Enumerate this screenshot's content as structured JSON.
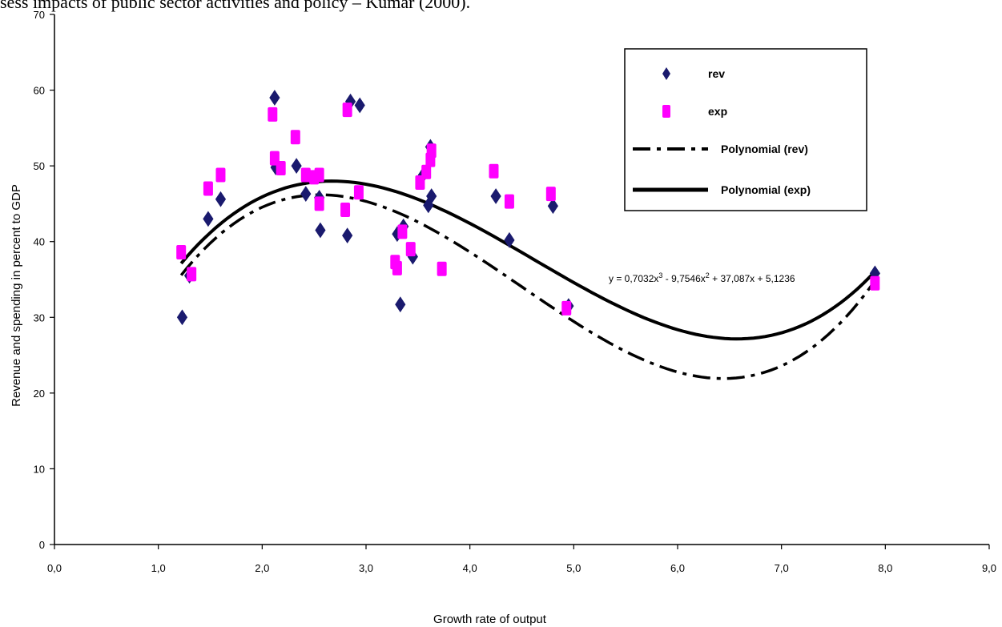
{
  "document": {
    "header_text": "sess impacts of public sector activities and policy – Kumar (2000)."
  },
  "chart_data": {
    "type": "scatter",
    "xlabel": "Growth rate of output",
    "ylabel": "Revenue and spending in percent to GDP",
    "xlim": [
      0,
      9
    ],
    "ylim": [
      0,
      70
    ],
    "x_ticks": [
      "0,0",
      "1,0",
      "2,0",
      "3,0",
      "4,0",
      "5,0",
      "6,0",
      "7,0",
      "8,0",
      "9,0"
    ],
    "y_ticks": [
      "0",
      "10",
      "20",
      "30",
      "40",
      "50",
      "60",
      "70"
    ],
    "grid": false,
    "legend_position": "top-right",
    "legend": [
      "rev",
      "exp",
      "Polynomial (rev)",
      "Polynomial (exp)"
    ],
    "annotation": "y = 0,7032x3 - 9,7546x2 + 37,087x + 5,1236",
    "colors": {
      "rev": "#1a1a6e",
      "exp": "#ff00ff",
      "trend": "#000000"
    },
    "series": [
      {
        "name": "rev",
        "marker": "diamond",
        "points": [
          [
            1.23,
            30.0
          ],
          [
            1.3,
            35.5
          ],
          [
            1.48,
            43.0
          ],
          [
            1.6,
            45.6
          ],
          [
            2.12,
            59.0
          ],
          [
            2.13,
            49.8
          ],
          [
            2.33,
            50.0
          ],
          [
            2.42,
            46.3
          ],
          [
            2.55,
            45.8
          ],
          [
            2.56,
            41.5
          ],
          [
            2.82,
            40.8
          ],
          [
            2.85,
            58.5
          ],
          [
            2.94,
            58.0
          ],
          [
            3.3,
            41.0
          ],
          [
            3.33,
            31.7
          ],
          [
            3.36,
            42.0
          ],
          [
            3.45,
            38.0
          ],
          [
            3.55,
            48.8
          ],
          [
            3.6,
            44.8
          ],
          [
            3.62,
            52.5
          ],
          [
            3.63,
            46.0
          ],
          [
            4.25,
            46.0
          ],
          [
            4.38,
            40.2
          ],
          [
            4.8,
            44.7
          ],
          [
            4.95,
            31.5
          ],
          [
            7.9,
            35.8
          ]
        ]
      },
      {
        "name": "exp",
        "marker": "square",
        "points": [
          [
            1.22,
            38.6
          ],
          [
            1.32,
            35.7
          ],
          [
            1.48,
            47.0
          ],
          [
            1.6,
            48.8
          ],
          [
            2.1,
            56.8
          ],
          [
            2.12,
            51.0
          ],
          [
            2.18,
            49.7
          ],
          [
            2.32,
            53.8
          ],
          [
            2.42,
            48.8
          ],
          [
            2.5,
            48.5
          ],
          [
            2.55,
            48.8
          ],
          [
            2.55,
            45.0
          ],
          [
            2.8,
            44.2
          ],
          [
            2.82,
            57.4
          ],
          [
            2.93,
            46.5
          ],
          [
            3.28,
            37.3
          ],
          [
            3.3,
            36.5
          ],
          [
            3.35,
            41.3
          ],
          [
            3.43,
            39.0
          ],
          [
            3.52,
            47.8
          ],
          [
            3.58,
            49.2
          ],
          [
            3.62,
            50.8
          ],
          [
            3.63,
            52.0
          ],
          [
            3.73,
            36.4
          ],
          [
            4.23,
            49.3
          ],
          [
            4.38,
            45.3
          ],
          [
            4.78,
            46.3
          ],
          [
            4.93,
            31.2
          ],
          [
            7.9,
            34.5
          ]
        ]
      }
    ],
    "trendlines": [
      {
        "name": "Polynomial (rev)",
        "style": "dash-dot",
        "coefficients": [
          0.83,
          -11.2,
          41.0,
          0.7
        ],
        "x_range": [
          1.22,
          7.9
        ]
      },
      {
        "name": "Polynomial (exp)",
        "style": "solid",
        "coefficients": [
          0.7032,
          -9.7546,
          37.087,
          5.1236
        ],
        "x_range": [
          1.22,
          7.9
        ]
      }
    ]
  }
}
